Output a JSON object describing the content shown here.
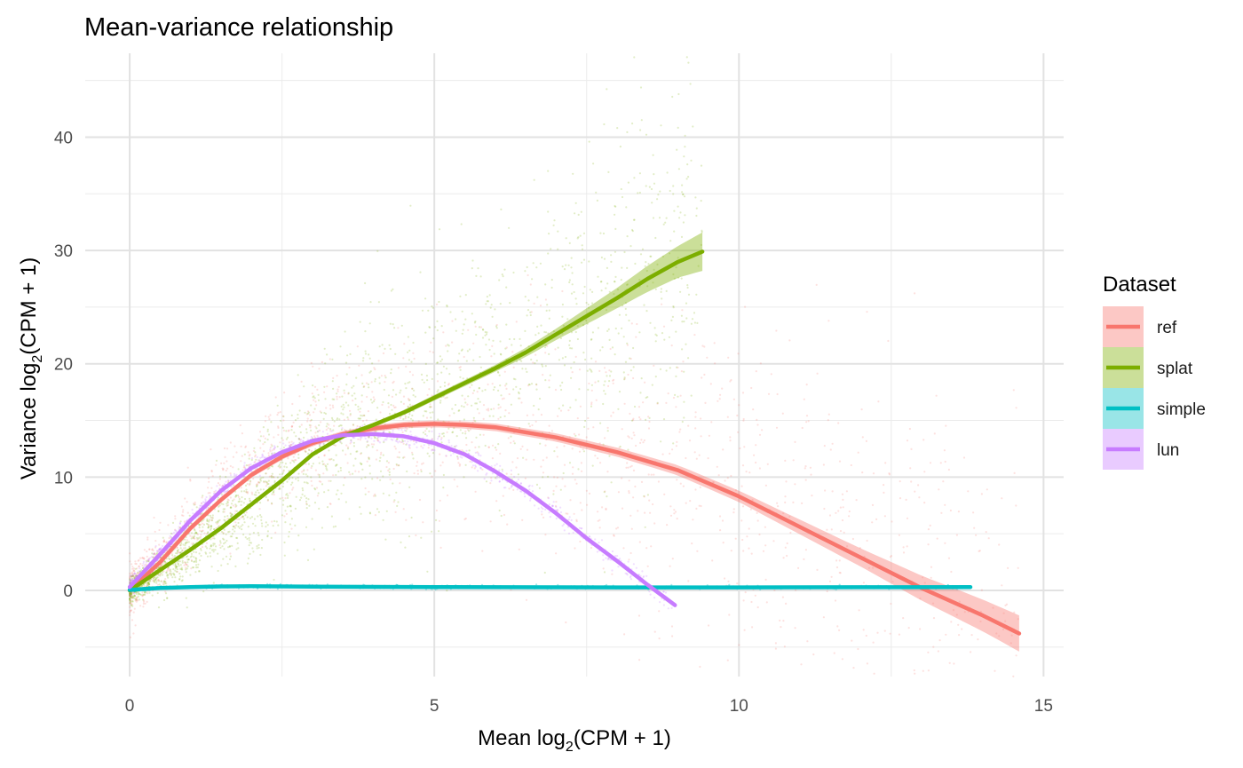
{
  "chart_data": {
    "type": "scatter",
    "title": "Mean-variance relationship",
    "xlabel": {
      "prefix": "Mean log",
      "sub": "2",
      "suffix": "(CPM + 1)"
    },
    "ylabel": {
      "prefix": "Variance log",
      "sub": "2",
      "suffix": "(CPM + 1)"
    },
    "xlim": [
      -0.73,
      15.33
    ],
    "ylim": [
      -7.6,
      47.4
    ],
    "x_ticks": [
      0,
      5,
      10,
      15
    ],
    "y_ticks": [
      0,
      10,
      20,
      30,
      40
    ],
    "grid": true,
    "legend": {
      "title": "Dataset",
      "placement": "right"
    },
    "series": [
      {
        "name": "ref",
        "color": "#F8766D",
        "fill": "#F8766D",
        "fit": [
          [
            0,
            0
          ],
          [
            0.5,
            2.5
          ],
          [
            1,
            5.5
          ],
          [
            1.5,
            8
          ],
          [
            2,
            10.2
          ],
          [
            2.5,
            11.8
          ],
          [
            3,
            13
          ],
          [
            3.5,
            13.8
          ],
          [
            4,
            14.3
          ],
          [
            4.5,
            14.6
          ],
          [
            5,
            14.7
          ],
          [
            5.5,
            14.6
          ],
          [
            6,
            14.4
          ],
          [
            7,
            13.5
          ],
          [
            8,
            12.2
          ],
          [
            9,
            10.6
          ],
          [
            10,
            8.3
          ],
          [
            11,
            5.6
          ],
          [
            12,
            2.9
          ],
          [
            13,
            0.2
          ],
          [
            14,
            -2.2
          ],
          [
            14.6,
            -3.8
          ]
        ],
        "ribbon_halfwidth": [
          [
            0,
            0.2
          ],
          [
            5,
            0.3
          ],
          [
            8,
            0.4
          ],
          [
            10,
            0.5
          ],
          [
            12,
            0.8
          ],
          [
            13,
            1.1
          ],
          [
            14,
            1.4
          ],
          [
            14.6,
            1.6
          ]
        ]
      },
      {
        "name": "splat",
        "color": "#7CAE00",
        "fill": "#7CAE00",
        "fit": [
          [
            0,
            0
          ],
          [
            0.5,
            1.8
          ],
          [
            1,
            3.6
          ],
          [
            1.5,
            5.5
          ],
          [
            2,
            7.6
          ],
          [
            2.5,
            9.7
          ],
          [
            3,
            12
          ],
          [
            3.5,
            13.6
          ],
          [
            4,
            14.6
          ],
          [
            4.5,
            15.7
          ],
          [
            5,
            17
          ],
          [
            5.5,
            18.3
          ],
          [
            6,
            19.6
          ],
          [
            6.5,
            21
          ],
          [
            7,
            22.6
          ],
          [
            7.5,
            24.2
          ],
          [
            8,
            25.8
          ],
          [
            8.5,
            27.5
          ],
          [
            9,
            29
          ],
          [
            9.4,
            29.9
          ]
        ],
        "ribbon_halfwidth": [
          [
            0,
            0.1
          ],
          [
            4,
            0.2
          ],
          [
            6,
            0.3
          ],
          [
            7,
            0.5
          ],
          [
            8,
            0.9
          ],
          [
            9,
            1.4
          ],
          [
            9.4,
            1.7
          ]
        ]
      },
      {
        "name": "simple",
        "color": "#00BFC4",
        "fill": "#00BFC4",
        "fit": [
          [
            0,
            0.05
          ],
          [
            0.5,
            0.22
          ],
          [
            1,
            0.3
          ],
          [
            1.5,
            0.35
          ],
          [
            2,
            0.37
          ],
          [
            3,
            0.33
          ],
          [
            5,
            0.3
          ],
          [
            8,
            0.27
          ],
          [
            10,
            0.27
          ],
          [
            12,
            0.28
          ],
          [
            13.8,
            0.3
          ]
        ],
        "ribbon_halfwidth": [
          [
            0,
            0.05
          ],
          [
            13.8,
            0.05
          ]
        ]
      },
      {
        "name": "lun",
        "color": "#C77CFF",
        "fill": "#C77CFF",
        "fit": [
          [
            0,
            0.3
          ],
          [
            0.5,
            3.2
          ],
          [
            1,
            6.2
          ],
          [
            1.5,
            8.8
          ],
          [
            2,
            10.8
          ],
          [
            2.5,
            12.2
          ],
          [
            3,
            13.2
          ],
          [
            3.5,
            13.7
          ],
          [
            4,
            13.8
          ],
          [
            4.5,
            13.6
          ],
          [
            5,
            13
          ],
          [
            5.5,
            12
          ],
          [
            6,
            10.5
          ],
          [
            6.5,
            8.8
          ],
          [
            7,
            6.8
          ],
          [
            7.5,
            4.6
          ],
          [
            8,
            2.6
          ],
          [
            8.5,
            0.5
          ],
          [
            8.95,
            -1.3
          ]
        ],
        "ribbon_halfwidth": [
          [
            0,
            0.1
          ],
          [
            9,
            0.15
          ]
        ]
      }
    ]
  }
}
